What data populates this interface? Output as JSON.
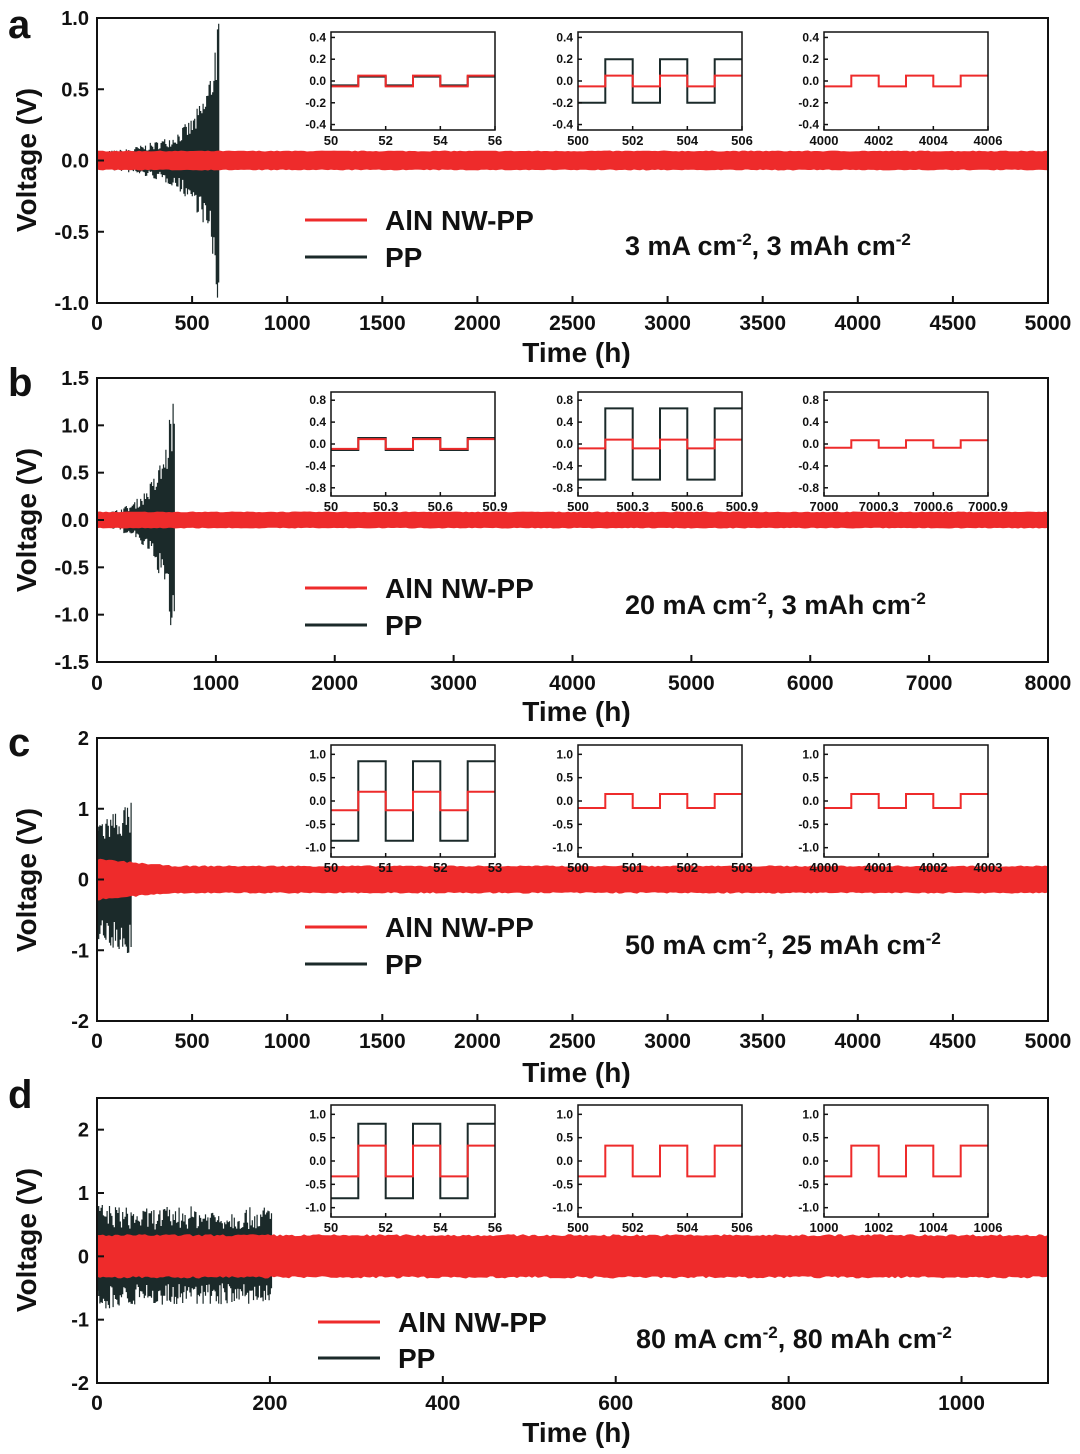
{
  "figure": {
    "colors": {
      "aln": "#ee2b2b",
      "pp": "#1b2a2a",
      "axis": "#111111"
    },
    "legend": {
      "aln_label": "AlN NW-PP",
      "pp_label": "PP"
    }
  },
  "chart_data": [
    {
      "panel": "a",
      "type": "line",
      "condition": "3 mA cm-2, 3 mAh cm-2",
      "condition_parts": {
        "i": "3",
        "c": "3"
      },
      "xlabel": "Time (h)",
      "ylabel": "Voltage (V)",
      "xlim": [
        0,
        5000
      ],
      "ylim": [
        -1.0,
        1.0
      ],
      "xticks": [
        0,
        500,
        1000,
        1500,
        2000,
        2500,
        3000,
        3500,
        4000,
        4500,
        5000
      ],
      "yticks": [
        -1.0,
        -0.5,
        0.0,
        0.5,
        1.0
      ],
      "ytick_labels": [
        "-1.0",
        "-0.5",
        "0.0",
        "0.5",
        "1.0"
      ],
      "series": [
        {
          "name": "AlN NW-PP",
          "color": "#ee2b2b",
          "envelope": [
            [
              0,
              0.07
            ],
            [
              5000,
              0.07
            ]
          ]
        },
        {
          "name": "PP",
          "color": "#1b2a2a",
          "end": 640,
          "envelope": [
            [
              0,
              0.06
            ],
            [
              150,
              0.08
            ],
            [
              300,
              0.13
            ],
            [
              400,
              0.18
            ],
            [
              500,
              0.3
            ],
            [
              560,
              0.45
            ],
            [
              600,
              0.65
            ],
            [
              630,
              1.0
            ],
            [
              640,
              1.0
            ]
          ]
        }
      ],
      "insets": [
        {
          "xlim": [
            50,
            56
          ],
          "xticks": [
            50,
            52,
            54,
            56
          ],
          "ylim": [
            -0.45,
            0.45
          ],
          "yticks": [
            -0.4,
            -0.2,
            0.0,
            0.2,
            0.4
          ],
          "ytick_labels": [
            "-0.4",
            "-0.2",
            "0.0",
            "0.2",
            "0.4"
          ],
          "period": 2,
          "aln_amp": 0.05,
          "pp_amp": 0.04
        },
        {
          "xlim": [
            500,
            506
          ],
          "xticks": [
            500,
            502,
            504,
            506
          ],
          "ylim": [
            -0.45,
            0.45
          ],
          "yticks": [
            -0.4,
            -0.2,
            0.0,
            0.2,
            0.4
          ],
          "ytick_labels": [
            "-0.4",
            "-0.2",
            "0.0",
            "0.2",
            "0.4"
          ],
          "period": 2,
          "aln_amp": 0.05,
          "pp_amp": 0.2
        },
        {
          "xlim": [
            4000,
            4006
          ],
          "xticks": [
            4000,
            4002,
            4004,
            4006
          ],
          "ylim": [
            -0.45,
            0.45
          ],
          "yticks": [
            -0.4,
            -0.2,
            0.0,
            0.2,
            0.4
          ],
          "ytick_labels": [
            "-0.4",
            "-0.2",
            "0.0",
            "0.2",
            "0.4"
          ],
          "period": 2,
          "aln_amp": 0.05
        }
      ]
    },
    {
      "panel": "b",
      "type": "line",
      "condition": "20 mA cm-2, 3 mAh cm-2",
      "condition_parts": {
        "i": "20",
        "c": "3"
      },
      "xlabel": "Time (h)",
      "ylabel": "Voltage (V)",
      "xlim": [
        0,
        8000
      ],
      "ylim": [
        -1.5,
        1.5
      ],
      "xticks": [
        0,
        1000,
        2000,
        3000,
        4000,
        5000,
        6000,
        7000,
        8000
      ],
      "yticks": [
        -1.5,
        -1.0,
        -0.5,
        0.0,
        0.5,
        1.0,
        1.5
      ],
      "ytick_labels": [
        "-1.5",
        "-1.0",
        "-0.5",
        "0.0",
        "0.5",
        "1.0",
        "1.5"
      ],
      "series": [
        {
          "name": "AlN NW-PP",
          "color": "#ee2b2b",
          "envelope": [
            [
              0,
              0.09
            ],
            [
              8000,
              0.09
            ]
          ]
        },
        {
          "name": "PP",
          "color": "#1b2a2a",
          "end": 660,
          "envelope": [
            [
              0,
              0.08
            ],
            [
              150,
              0.1
            ],
            [
              300,
              0.18
            ],
            [
              400,
              0.3
            ],
            [
              500,
              0.5
            ],
            [
              580,
              0.8
            ],
            [
              620,
              1.2
            ],
            [
              660,
              1.4
            ]
          ]
        }
      ],
      "insets": [
        {
          "xlim": [
            50,
            50.9
          ],
          "xticks": [
            50,
            50.3,
            50.6,
            50.9
          ],
          "ylim": [
            -0.95,
            0.95
          ],
          "yticks": [
            -0.8,
            -0.4,
            0.0,
            0.4,
            0.8
          ],
          "ytick_labels": [
            "-0.8",
            "-0.4",
            "0.0",
            "0.4",
            "0.8"
          ],
          "period": 0.3,
          "aln_amp": 0.09,
          "pp_amp": 0.11
        },
        {
          "xlim": [
            500,
            500.9
          ],
          "xticks": [
            500,
            500.3,
            500.6,
            500.9
          ],
          "ylim": [
            -0.95,
            0.95
          ],
          "yticks": [
            -0.8,
            -0.4,
            0.0,
            0.4,
            0.8
          ],
          "ytick_labels": [
            "-0.8",
            "-0.4",
            "0.0",
            "0.4",
            "0.8"
          ],
          "period": 0.3,
          "aln_amp": 0.08,
          "pp_amp": 0.65
        },
        {
          "xlim": [
            7000,
            7000.9
          ],
          "xticks": [
            7000,
            7000.3,
            7000.6,
            7000.9
          ],
          "ylim": [
            -0.95,
            0.95
          ],
          "yticks": [
            -0.8,
            -0.4,
            0.0,
            0.4,
            0.8
          ],
          "ytick_labels": [
            "-0.8",
            "-0.4",
            "0.0",
            "0.4",
            "0.8"
          ],
          "period": 0.3,
          "aln_amp": 0.07
        }
      ]
    },
    {
      "panel": "c",
      "type": "line",
      "condition": "50 mA cm-2, 25 mAh cm-2",
      "condition_parts": {
        "i": "50",
        "c": "25"
      },
      "xlabel": "Time (h)",
      "ylabel": "Voltage (V)",
      "xlim": [
        0,
        5000
      ],
      "ylim": [
        -2,
        2
      ],
      "xticks": [
        0,
        500,
        1000,
        1500,
        2000,
        2500,
        3000,
        3500,
        4000,
        4500,
        5000
      ],
      "yticks": [
        -2,
        -1,
        0,
        1,
        2
      ],
      "ytick_labels": [
        "-2",
        "-1",
        "0",
        "1",
        "2"
      ],
      "series": [
        {
          "name": "AlN NW-PP",
          "color": "#ee2b2b",
          "envelope": [
            [
              0,
              0.3
            ],
            [
              200,
              0.25
            ],
            [
              400,
              0.2
            ],
            [
              5000,
              0.2
            ]
          ]
        },
        {
          "name": "PP",
          "color": "#1b2a2a",
          "end": 185,
          "envelope": [
            [
              0,
              0.9
            ],
            [
              60,
              0.95
            ],
            [
              120,
              1.05
            ],
            [
              185,
              1.1
            ]
          ]
        }
      ],
      "insets": [
        {
          "xlim": [
            50,
            53
          ],
          "xticks": [
            50,
            51,
            52,
            53
          ],
          "ylim": [
            -1.2,
            1.2
          ],
          "yticks": [
            -1.0,
            -0.5,
            0.0,
            0.5,
            1.0
          ],
          "ytick_labels": [
            "-1.0",
            "-0.5",
            "0.0",
            "0.5",
            "1.0"
          ],
          "period": 1,
          "aln_amp": 0.2,
          "pp_amp": 0.85
        },
        {
          "xlim": [
            500,
            503
          ],
          "xticks": [
            500,
            501,
            502,
            503
          ],
          "ylim": [
            -1.2,
            1.2
          ],
          "yticks": [
            -1.0,
            -0.5,
            0.0,
            0.5,
            1.0
          ],
          "ytick_labels": [
            "-1.0",
            "-0.5",
            "0.0",
            "0.5",
            "1.0"
          ],
          "period": 1,
          "aln_amp": 0.15
        },
        {
          "xlim": [
            4000,
            4003
          ],
          "xticks": [
            4000,
            4001,
            4002,
            4003
          ],
          "ylim": [
            -1.2,
            1.2
          ],
          "yticks": [
            -1.0,
            -0.5,
            0.0,
            0.5,
            1.0
          ],
          "ytick_labels": [
            "-1.0",
            "-0.5",
            "0.0",
            "0.5",
            "1.0"
          ],
          "period": 1,
          "aln_amp": 0.15
        }
      ]
    },
    {
      "panel": "d",
      "type": "line",
      "condition": "80 mA cm-2, 80 mAh cm-2",
      "condition_parts": {
        "i": "80",
        "c": "80"
      },
      "xlabel": "Time (h)",
      "ylabel": "Voltage (V)",
      "xlim": [
        0,
        1100
      ],
      "ylim": [
        -2,
        2.5
      ],
      "xticks": [
        0,
        200,
        400,
        600,
        800,
        1000
      ],
      "yticks": [
        -2,
        -1,
        0,
        1,
        2
      ],
      "ytick_labels": [
        "-2",
        "-1",
        "0",
        "1",
        "2"
      ],
      "series": [
        {
          "name": "AlN NW-PP",
          "color": "#ee2b2b",
          "envelope": [
            [
              0,
              0.35
            ],
            [
              1100,
              0.35
            ]
          ]
        },
        {
          "name": "PP",
          "color": "#1b2a2a",
          "end": 202,
          "envelope": [
            [
              0,
              0.85
            ],
            [
              50,
              0.75
            ],
            [
              100,
              0.8
            ],
            [
              150,
              0.75
            ],
            [
              202,
              0.8
            ]
          ]
        }
      ],
      "insets": [
        {
          "xlim": [
            50,
            56
          ],
          "xticks": [
            50,
            52,
            54,
            56
          ],
          "ylim": [
            -1.2,
            1.2
          ],
          "yticks": [
            -1.0,
            -0.5,
            0.0,
            0.5,
            1.0
          ],
          "ytick_labels": [
            "-1.0",
            "-0.5",
            "0.0",
            "0.5",
            "1.0"
          ],
          "period": 2,
          "aln_amp": 0.33,
          "pp_amp": 0.8
        },
        {
          "xlim": [
            500,
            506
          ],
          "xticks": [
            500,
            502,
            504,
            506
          ],
          "ylim": [
            -1.2,
            1.2
          ],
          "yticks": [
            -1.0,
            -0.5,
            0.0,
            0.5,
            1.0
          ],
          "ytick_labels": [
            "-1.0",
            "-0.5",
            "0.0",
            "0.5",
            "1.0"
          ],
          "period": 2,
          "aln_amp": 0.33
        },
        {
          "xlim": [
            1000,
            1006
          ],
          "xticks": [
            1000,
            1002,
            1004,
            1006
          ],
          "ylim": [
            -1.2,
            1.2
          ],
          "yticks": [
            -1.0,
            -0.5,
            0.0,
            0.5,
            1.0
          ],
          "ytick_labels": [
            "-1.0",
            "-0.5",
            "0.0",
            "0.5",
            "1.0"
          ],
          "period": 2,
          "aln_amp": 0.33
        }
      ]
    }
  ]
}
